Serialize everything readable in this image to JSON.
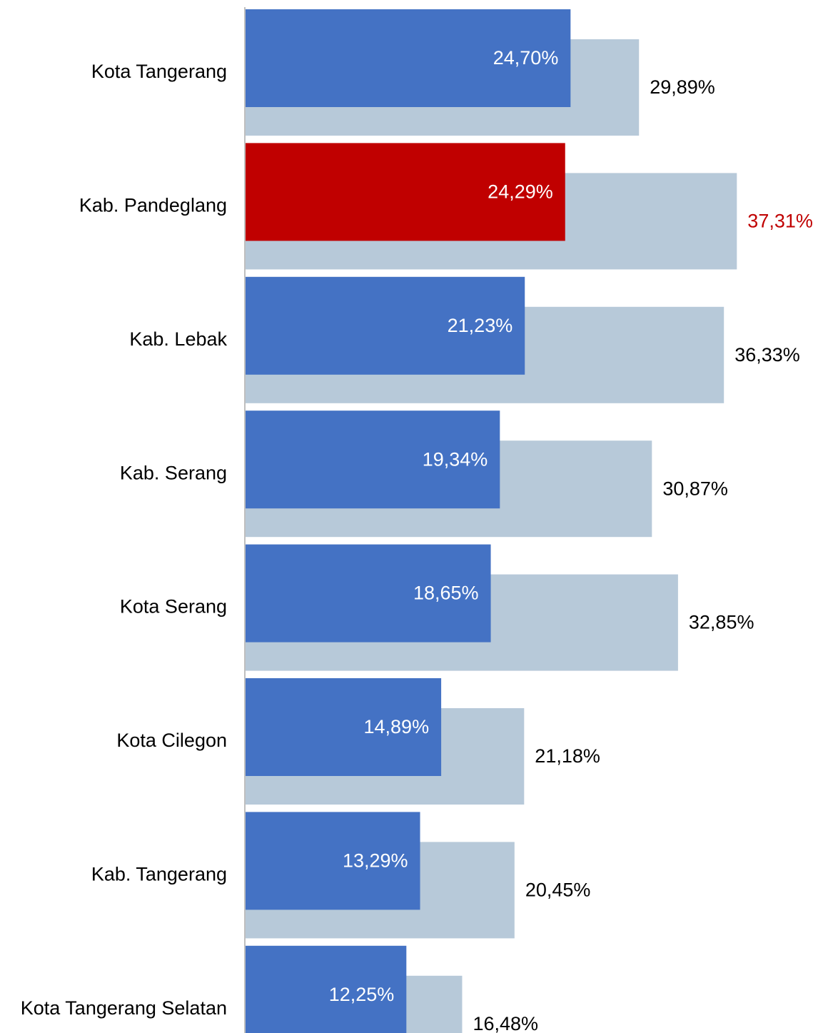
{
  "chart_data": {
    "type": "overlap-bar",
    "categories": [
      "Kota Tangerang",
      "Kab. Pandeglang",
      "Kab. Lebak",
      "Kab. Serang",
      "Kota Serang",
      "Kota Cilegon",
      "Kab. Tangerang",
      "Kota Tangerang Selatan"
    ],
    "series": [
      {
        "color": "#4472c4",
        "colors": [
          "#4472c4",
          "#c00000",
          "#4472c4",
          "#4472c4",
          "#4472c4",
          "#4472c4",
          "#4472c4",
          "#4472c4"
        ],
        "label_color": "#ffffff",
        "values": [
          24.7,
          24.29,
          21.23,
          19.34,
          18.65,
          14.89,
          13.29,
          12.25
        ],
        "value_labels": [
          "24,70%",
          "24,29%",
          "21,23%",
          "19,34%",
          "18,65%",
          "14,89%",
          "13,29%",
          "12,25%"
        ]
      },
      {
        "color": "#b7c9d9",
        "label_colors": [
          "#000000",
          "#c00000",
          "#000000",
          "#000000",
          "#000000",
          "#000000",
          "#000000",
          "#000000"
        ],
        "values": [
          29.89,
          37.31,
          36.33,
          30.87,
          32.85,
          21.18,
          20.45,
          16.48
        ],
        "value_labels": [
          "29,89%",
          "37,31%",
          "36,33%",
          "30,87%",
          "32,85%",
          "21,18%",
          "20,45%",
          "16,48%"
        ]
      }
    ],
    "xlim": [
      0,
      40
    ]
  }
}
